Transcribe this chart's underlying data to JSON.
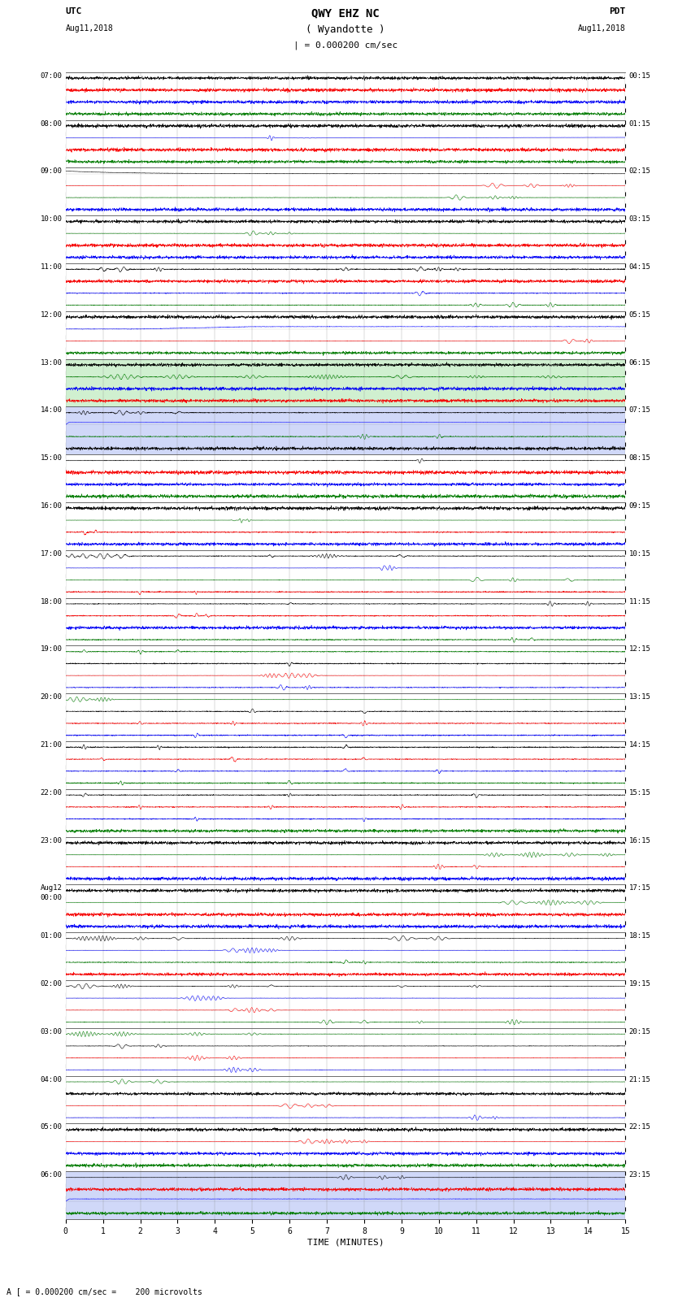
{
  "title_line1": "QWY EHZ NC",
  "title_line2": "( Wyandotte )",
  "title_line3": "I = 0.000200 cm/sec",
  "label_left_top": "UTC",
  "label_left_date": "Aug11,2018",
  "label_right_top": "PDT",
  "label_right_date": "Aug11,2018",
  "xlabel": "TIME (MINUTES)",
  "footnote": "A [ = 0.000200 cm/sec =    200 microvolts",
  "utc_labels": [
    "07:00",
    "08:00",
    "09:00",
    "10:00",
    "11:00",
    "12:00",
    "13:00",
    "14:00",
    "15:00",
    "16:00",
    "17:00",
    "18:00",
    "19:00",
    "20:00",
    "21:00",
    "22:00",
    "23:00",
    "Aug12\n00:00",
    "01:00",
    "02:00",
    "03:00",
    "04:00",
    "05:00",
    "06:00"
  ],
  "pdt_labels": [
    "00:15",
    "01:15",
    "02:15",
    "03:15",
    "04:15",
    "05:15",
    "06:15",
    "07:15",
    "08:15",
    "09:15",
    "10:15",
    "11:15",
    "12:15",
    "13:15",
    "14:15",
    "15:15",
    "16:15",
    "17:15",
    "18:15",
    "19:15",
    "20:15",
    "21:15",
    "22:15",
    "23:15"
  ],
  "n_rows": 24,
  "n_minutes": 15,
  "bg_color": "#ffffff",
  "grid_color": "#888888",
  "sub_traces_per_row": 4,
  "trace_colors": [
    "black",
    "red",
    "blue",
    "green"
  ]
}
